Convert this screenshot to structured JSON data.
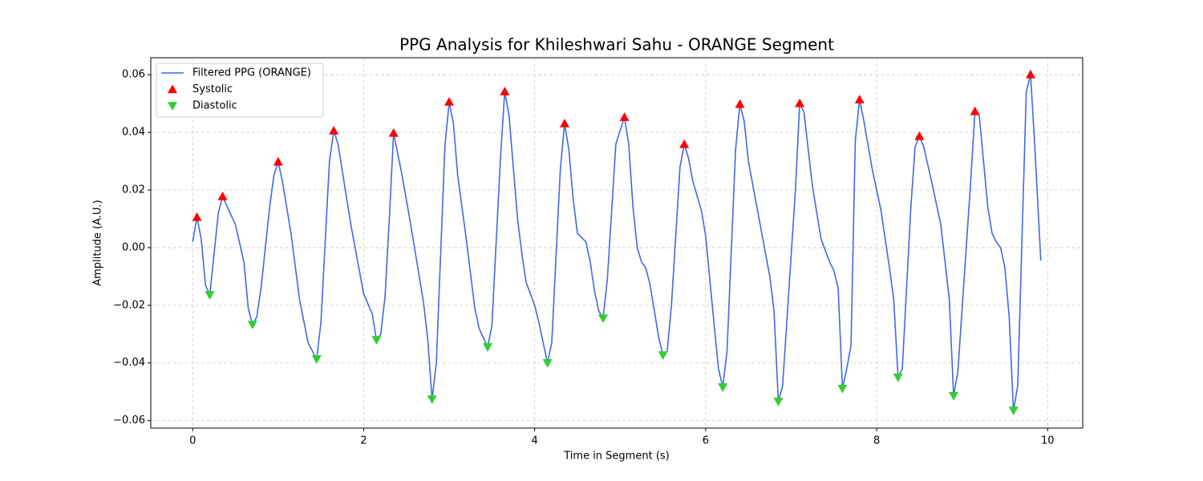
{
  "chart_data": {
    "type": "line",
    "title": "PPG Analysis for Khileshwari Sahu - ORANGE Segment",
    "xlabel": "Time in Segment (s)",
    "ylabel": "Amplitude (A.U.)",
    "xlim": [
      -0.49,
      10.41
    ],
    "ylim": [
      -0.0626,
      0.0659
    ],
    "xticks": [
      0,
      2,
      4,
      6,
      8,
      10
    ],
    "yticks": [
      {
        "value": -0.06,
        "label": "−0.06"
      },
      {
        "value": -0.04,
        "label": "−0.04"
      },
      {
        "value": -0.02,
        "label": "−0.02"
      },
      {
        "value": 0,
        "label": "0.00"
      },
      0.02,
      0.04,
      0.06
    ],
    "grid": true,
    "legend": "upper left",
    "series": [
      {
        "name": "Filtered PPG (ORANGE)",
        "type": "line",
        "color": "#4169e1",
        "x": [
          0,
          0.05,
          0.1,
          0.15,
          0.2,
          0.3,
          0.35,
          0.5,
          0.6,
          0.65,
          0.7,
          0.75,
          0.8,
          0.9,
          0.95,
          1.0,
          1.05,
          1.15,
          1.25,
          1.35,
          1.45,
          1.5,
          1.6,
          1.65,
          1.7,
          1.85,
          1.95,
          2.0,
          2.1,
          2.15,
          2.2,
          2.25,
          2.3,
          2.35,
          2.45,
          2.55,
          2.65,
          2.7,
          2.75,
          2.8,
          2.85,
          2.95,
          3.0,
          3.05,
          3.1,
          3.2,
          3.3,
          3.35,
          3.45,
          3.5,
          3.6,
          3.65,
          3.7,
          3.8,
          3.85,
          3.9,
          4.0,
          4.05,
          4.1,
          4.15,
          4.2,
          4.3,
          4.35,
          4.4,
          4.45,
          4.5,
          4.6,
          4.65,
          4.7,
          4.75,
          4.8,
          4.85,
          4.95,
          5.05,
          5.1,
          5.15,
          5.2,
          5.25,
          5.3,
          5.35,
          5.45,
          5.5,
          5.55,
          5.6,
          5.7,
          5.75,
          5.8,
          5.85,
          5.95,
          6.0,
          6.1,
          6.15,
          6.2,
          6.25,
          6.35,
          6.4,
          6.45,
          6.5,
          6.65,
          6.75,
          6.8,
          6.85,
          6.9,
          7.05,
          7.1,
          7.15,
          7.25,
          7.35,
          7.45,
          7.5,
          7.55,
          7.6,
          7.65,
          7.7,
          7.75,
          7.8,
          7.85,
          7.95,
          8.05,
          8.15,
          8.2,
          8.25,
          8.3,
          8.4,
          8.45,
          8.5,
          8.55,
          8.65,
          8.75,
          8.85,
          8.9,
          8.95,
          9.1,
          9.15,
          9.2,
          9.3,
          9.35,
          9.4,
          9.45,
          9.5,
          9.55,
          9.6,
          9.65,
          9.75,
          9.8,
          9.85,
          9.92
        ],
        "values": [
          0.002,
          0.0106,
          0.003,
          -0.013,
          -0.0164,
          0.012,
          0.0178,
          0.008,
          -0.005,
          -0.021,
          -0.0267,
          -0.024,
          -0.014,
          0.014,
          0.025,
          0.0298,
          0.023,
          0.005,
          -0.018,
          -0.033,
          -0.0387,
          -0.026,
          0.03,
          0.0406,
          0.036,
          0.008,
          -0.008,
          -0.016,
          -0.023,
          -0.032,
          -0.03,
          -0.017,
          0.01,
          0.0398,
          0.025,
          0.008,
          -0.01,
          -0.019,
          -0.032,
          -0.0526,
          -0.04,
          0.035,
          0.0506,
          0.043,
          0.025,
          0.003,
          -0.021,
          -0.028,
          -0.0345,
          -0.027,
          0.031,
          0.0542,
          0.046,
          0.01,
          -0.002,
          -0.012,
          -0.02,
          -0.026,
          -0.033,
          -0.04,
          -0.033,
          0.027,
          0.0431,
          0.034,
          0.017,
          0.005,
          0.002,
          -0.005,
          -0.015,
          -0.022,
          -0.0245,
          -0.011,
          0.036,
          0.0453,
          0.036,
          0.014,
          0.0,
          -0.005,
          -0.007,
          -0.013,
          -0.031,
          -0.0373,
          -0.036,
          -0.02,
          0.028,
          0.0359,
          0.031,
          0.023,
          0.013,
          0.004,
          -0.027,
          -0.042,
          -0.0484,
          -0.036,
          0.034,
          0.0498,
          0.044,
          0.03,
          0.006,
          -0.01,
          -0.022,
          -0.0534,
          -0.048,
          0.02,
          0.0501,
          0.047,
          0.021,
          0.003,
          -0.005,
          -0.008,
          -0.014,
          -0.0489,
          -0.042,
          -0.034,
          0.037,
          0.0514,
          0.044,
          0.027,
          0.013,
          -0.007,
          -0.018,
          -0.045,
          -0.042,
          0.014,
          0.035,
          0.0387,
          0.035,
          0.022,
          0.008,
          -0.018,
          -0.0514,
          -0.043,
          0.023,
          0.0473,
          0.046,
          0.014,
          0.005,
          0.002,
          0.0,
          -0.007,
          -0.024,
          -0.0565,
          -0.048,
          0.054,
          0.0601,
          0.035,
          -0.0045
        ]
      },
      {
        "name": "Systolic",
        "type": "scatter",
        "marker": "up",
        "color": "#ff0000",
        "x": [
          0.05,
          0.35,
          1.0,
          1.65,
          2.35,
          3.0,
          3.65,
          4.35,
          5.05,
          5.75,
          6.4,
          7.1,
          7.8,
          8.5,
          9.15,
          9.8
        ],
        "values": [
          0.0106,
          0.0178,
          0.0298,
          0.0406,
          0.0398,
          0.0506,
          0.0542,
          0.0431,
          0.0453,
          0.0359,
          0.0498,
          0.0501,
          0.0514,
          0.0387,
          0.0473,
          0.0601
        ]
      },
      {
        "name": "Diastolic",
        "type": "scatter",
        "marker": "down",
        "color": "#32cd32",
        "x": [
          0.2,
          0.7,
          1.45,
          2.15,
          2.8,
          3.45,
          4.15,
          4.8,
          5.5,
          6.2,
          6.85,
          7.6,
          8.25,
          8.9,
          9.6
        ],
        "values": [
          -0.0164,
          -0.0267,
          -0.0387,
          -0.032,
          -0.0526,
          -0.0345,
          -0.04,
          -0.0245,
          -0.0373,
          -0.0484,
          -0.0534,
          -0.0489,
          -0.045,
          -0.0514,
          -0.0565
        ]
      }
    ]
  }
}
